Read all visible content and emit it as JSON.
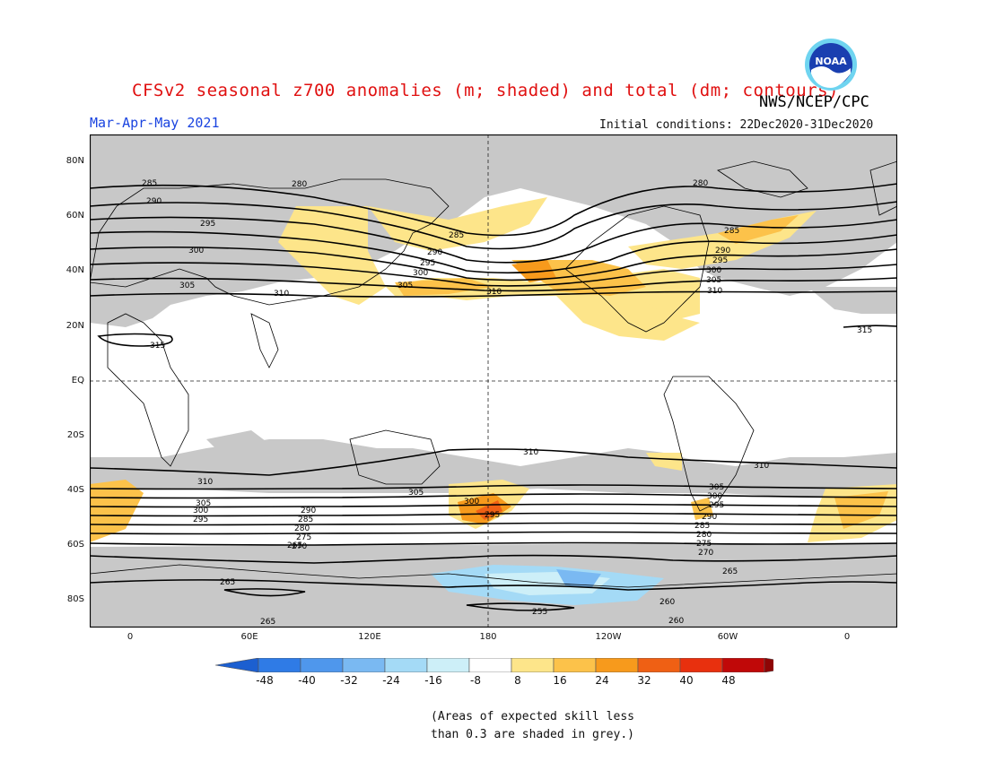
{
  "header": {
    "title": "CFSv2 seasonal z700 anomalies (m; shaded) and total (dm; contours)",
    "agency": "NWS/NCEP/CPC",
    "season": "Mar-Apr-May 2021",
    "initial_conditions": "Initial conditions: 22Dec2020-31Dec2020",
    "logo_text": "NOAA"
  },
  "map": {
    "lat_labels": [
      "80N",
      "60N",
      "40N",
      "20N",
      "EQ",
      "20S",
      "40S",
      "60S",
      "80S"
    ],
    "lon_labels": [
      "0",
      "60E",
      "120E",
      "180",
      "120W",
      "60W",
      "0"
    ],
    "contour_labels": [
      "285",
      "280",
      "290",
      "295",
      "300",
      "305",
      "310",
      "315",
      "285",
      "290",
      "295",
      "300",
      "305",
      "310",
      "280",
      "285",
      "290",
      "295",
      "300",
      "305",
      "310",
      "315",
      "310",
      "305",
      "300",
      "295",
      "290",
      "285",
      "280",
      "275",
      "270",
      "265",
      "310",
      "305",
      "300",
      "295",
      "290",
      "285",
      "280",
      "275",
      "270",
      "265",
      "260",
      "255",
      "260",
      "265",
      "265",
      "310",
      "305",
      "300",
      "295"
    ],
    "grey_note": "Areas of expected skill less than 0.3 are shaded in grey"
  },
  "colorbar": {
    "ticks": [
      "-48",
      "-40",
      "-32",
      "-24",
      "-16",
      "-8",
      "8",
      "16",
      "24",
      "32",
      "40",
      "48"
    ],
    "colors": [
      "#1c5fd0",
      "#2f7be6",
      "#4f97ec",
      "#7ab9f2",
      "#a4daf6",
      "#cdeff8",
      "#ffffff",
      "#fde58a",
      "#fcc24a",
      "#f79a1c",
      "#ef6014",
      "#e8300e",
      "#c00808",
      "#8e0505"
    ]
  },
  "notes": {
    "line1": "(Areas of expected skill less",
    "line2": "than 0.3 are shaded in grey.)"
  }
}
